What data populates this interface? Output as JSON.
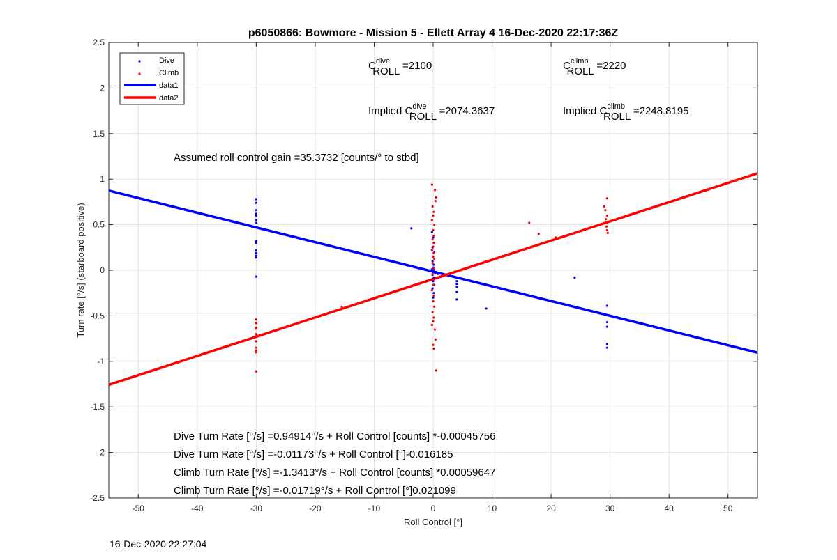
{
  "chart_data": {
    "type": "scatter",
    "title": "p6050866: Bowmore - Mission 5 - Ellett Array 4 16-Dec-2020 22:17:36Z",
    "xlabel": "Roll Control [°]",
    "ylabel": "Turn rate [°/s] (starboard positive)",
    "xlim": [
      -55,
      55
    ],
    "ylim": [
      -2.5,
      2.5
    ],
    "x_ticks": [
      -50,
      -40,
      -30,
      -20,
      -10,
      0,
      10,
      20,
      30,
      40,
      50
    ],
    "y_ticks": [
      -2.5,
      -2,
      -1.5,
      -1,
      -0.5,
      0,
      0.5,
      1,
      1.5,
      2,
      2.5
    ],
    "x_tick_labels": [
      "-50",
      "-40",
      "-30",
      "-20",
      "-10",
      "0",
      "10",
      "20",
      "30",
      "40",
      "50"
    ],
    "y_tick_labels": [
      "-2.5",
      "-2",
      "-1.5",
      "-1",
      "-0.5",
      "0",
      "0.5",
      "1",
      "1.5",
      "2",
      "2.5"
    ],
    "grid": true,
    "legend_position": "top-left",
    "series": [
      {
        "name": "Dive",
        "kind": "points",
        "color": "#0000ff",
        "points": [
          [
            -30,
            0.78
          ],
          [
            -30,
            0.74
          ],
          [
            -30,
            0.66
          ],
          [
            -30,
            0.62
          ],
          [
            -30,
            0.6
          ],
          [
            -30,
            0.55
          ],
          [
            -30,
            0.52
          ],
          [
            -30,
            0.32
          ],
          [
            -30,
            0.3
          ],
          [
            -30,
            0.22
          ],
          [
            -30,
            0.19
          ],
          [
            -30,
            0.16
          ],
          [
            -30,
            0.14
          ],
          [
            -30,
            -0.07
          ],
          [
            -3.7,
            0.46
          ],
          [
            -0.2,
            0.42
          ],
          [
            0,
            0.36
          ],
          [
            0.1,
            0.3
          ],
          [
            -0.1,
            0.25
          ],
          [
            0.2,
            0.2
          ],
          [
            0,
            0.15
          ],
          [
            -0.1,
            0.1
          ],
          [
            0.1,
            0.06
          ],
          [
            0,
            0.03
          ],
          [
            -0.2,
            0.01
          ],
          [
            0.2,
            0
          ],
          [
            0,
            -0.02
          ],
          [
            0.3,
            -0.03
          ],
          [
            -0.1,
            -0.05
          ],
          [
            0.1,
            -0.08
          ],
          [
            0,
            -0.12
          ],
          [
            0.2,
            -0.16
          ],
          [
            -0.1,
            -0.2
          ],
          [
            0.1,
            -0.25
          ],
          [
            0,
            -0.3
          ],
          [
            0.5,
            -0.02
          ],
          [
            0.8,
            -0.04
          ],
          [
            4,
            -0.12
          ],
          [
            4,
            -0.15
          ],
          [
            4,
            -0.18
          ],
          [
            4,
            -0.24
          ],
          [
            4,
            -0.32
          ],
          [
            9,
            -0.42
          ],
          [
            24,
            -0.08
          ],
          [
            29.5,
            -0.39
          ],
          [
            29.5,
            -0.57
          ],
          [
            29.5,
            -0.62
          ],
          [
            29.5,
            -0.81
          ],
          [
            29.5,
            -0.85
          ]
        ]
      },
      {
        "name": "Climb",
        "kind": "points",
        "color": "#ff0000",
        "points": [
          [
            -30,
            -0.54
          ],
          [
            -30,
            -0.58
          ],
          [
            -30,
            -0.63
          ],
          [
            -30,
            -0.64
          ],
          [
            -30,
            -0.7
          ],
          [
            -30,
            -0.72
          ],
          [
            -30,
            -0.78
          ],
          [
            -30,
            -0.85
          ],
          [
            -30,
            -0.88
          ],
          [
            -30,
            -0.9
          ],
          [
            -30,
            -1.11
          ],
          [
            -15.5,
            -0.4
          ],
          [
            -0.2,
            0.94
          ],
          [
            0.3,
            0.88
          ],
          [
            0.5,
            0.8
          ],
          [
            0.4,
            0.76
          ],
          [
            -0.1,
            0.7
          ],
          [
            0.1,
            0.64
          ],
          [
            0,
            0.6
          ],
          [
            -0.2,
            0.55
          ],
          [
            0.2,
            0.5
          ],
          [
            0,
            0.44
          ],
          [
            0.1,
            0.38
          ],
          [
            -0.1,
            0.34
          ],
          [
            0.2,
            0.3
          ],
          [
            0,
            0.26
          ],
          [
            -0.2,
            0.22
          ],
          [
            0.1,
            0.19
          ],
          [
            0,
            0.15
          ],
          [
            0.2,
            0.12
          ],
          [
            -0.1,
            0.08
          ],
          [
            0.1,
            0.02
          ],
          [
            -0.1,
            -0.04
          ],
          [
            0.2,
            -0.1
          ],
          [
            0,
            -0.16
          ],
          [
            -0.2,
            -0.22
          ],
          [
            0.1,
            -0.28
          ],
          [
            0,
            -0.34
          ],
          [
            0.2,
            -0.4
          ],
          [
            -0.1,
            -0.46
          ],
          [
            0.1,
            -0.52
          ],
          [
            0,
            -0.56
          ],
          [
            -0.2,
            -0.6
          ],
          [
            0.3,
            -0.65
          ],
          [
            0.4,
            -0.76
          ],
          [
            0,
            -0.82
          ],
          [
            0.1,
            -0.86
          ],
          [
            0.5,
            -1.1
          ],
          [
            16.3,
            0.52
          ],
          [
            17.9,
            0.4
          ],
          [
            20.8,
            0.36
          ],
          [
            29,
            0.7
          ],
          [
            29.5,
            0.79
          ],
          [
            29.2,
            0.66
          ],
          [
            29.5,
            0.6
          ],
          [
            29.3,
            0.56
          ],
          [
            29.5,
            0.52
          ],
          [
            29.4,
            0.48
          ],
          [
            29.5,
            0.44
          ],
          [
            29.6,
            0.41
          ]
        ]
      },
      {
        "name": "data1",
        "kind": "line",
        "color": "#0000ff",
        "points": [
          [
            -55,
            0.874
          ],
          [
            55,
            -0.904
          ]
        ]
      },
      {
        "name": "data2",
        "kind": "line",
        "color": "#ff0000",
        "points": [
          [
            -55,
            -1.257
          ],
          [
            55,
            1.064
          ]
        ]
      }
    ],
    "annotations": [
      {
        "prefix": "C",
        "sup": "dive",
        "sub": "ROLL",
        "suffix": " =2100"
      },
      {
        "prefix": "C",
        "sup": "climb",
        "sub": "ROLL",
        "suffix": " =2220"
      },
      {
        "prefix": "Implied C",
        "sup": "dive",
        "sub": "ROLL",
        "suffix": " =2074.3637"
      },
      {
        "prefix": "Implied C",
        "sup": "climb",
        "sub": "ROLL",
        "suffix": " =2248.8195"
      }
    ],
    "gain_text": "Assumed roll control gain =35.3732 [counts/° to stbd]",
    "equations": [
      "Dive Turn Rate [°/s] =0.94914°/s + Roll Control [counts] *-0.00045756",
      "Dive Turn Rate [°/s] =-0.01173°/s + Roll Control [°]-0.016185",
      "Climb Turn Rate [°/s] =-1.3413°/s + Roll Control [counts] *0.00059647",
      "Climb Turn Rate [°/s] =-0.01719°/s + Roll Control [°]0.021099"
    ]
  },
  "footer": {
    "date": "16-Dec-2020 22:27:04"
  }
}
